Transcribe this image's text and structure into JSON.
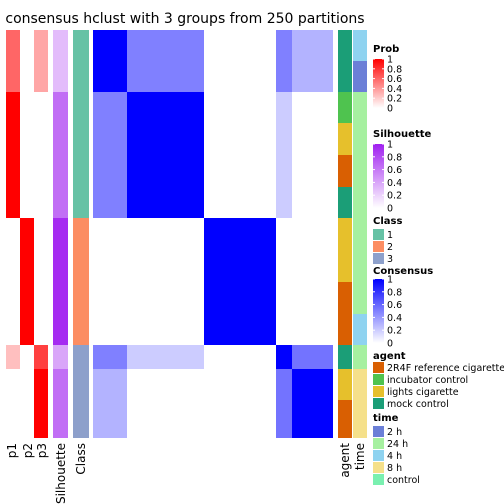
{
  "chart_data": {
    "type": "heatmap",
    "title": "consensus hclust with 3 groups from 250 partitions",
    "row_groups": [
      {
        "group": 1,
        "rows": 6
      },
      {
        "group": 2,
        "rows": 4
      },
      {
        "group": 3,
        "rows": 3
      }
    ],
    "row_blocks_px_note": "",
    "rows": [
      {
        "p1": 0.6,
        "p2": 0,
        "p3": 0.35,
        "silhouette": 0.3,
        "class": 1,
        "agent": "mock control",
        "time": "4 h"
      },
      {
        "p1": 0.6,
        "p2": 0,
        "p3": 0.35,
        "silhouette": 0.3,
        "class": 1,
        "agent": "mock control",
        "time": "2 h"
      },
      {
        "p1": 1.0,
        "p2": 0,
        "p3": 0,
        "silhouette": 0.65,
        "class": 1,
        "agent": "incubator control",
        "time": "24 h"
      },
      {
        "p1": 1.0,
        "p2": 0,
        "p3": 0,
        "silhouette": 0.65,
        "class": 1,
        "agent": "lights cigarette",
        "time": "24 h"
      },
      {
        "p1": 1.0,
        "p2": 0,
        "p3": 0,
        "silhouette": 0.65,
        "class": 1,
        "agent": "2R4F reference cigarette",
        "time": "24 h"
      },
      {
        "p1": 1.0,
        "p2": 0,
        "p3": 0,
        "silhouette": 0.65,
        "class": 1,
        "agent": "mock control",
        "time": "24 h"
      },
      {
        "p1": 0,
        "p2": 1.0,
        "p3": 0,
        "silhouette": 0.95,
        "class": 2,
        "agent": "lights cigarette",
        "time": "24 h"
      },
      {
        "p1": 0,
        "p2": 1.0,
        "p3": 0,
        "silhouette": 0.95,
        "class": 2,
        "agent": "lights cigarette",
        "time": "24 h"
      },
      {
        "p1": 0,
        "p2": 1.0,
        "p3": 0,
        "silhouette": 0.95,
        "class": 2,
        "agent": "2R4F reference cigarette",
        "time": "24 h"
      },
      {
        "p1": 0,
        "p2": 1.0,
        "p3": 0,
        "silhouette": 0.95,
        "class": 2,
        "agent": "2R4F reference cigarette",
        "time": "4 h"
      },
      {
        "p1": 0.25,
        "p2": 0,
        "p3": 0.75,
        "silhouette": 0.4,
        "class": 3,
        "agent": "mock control",
        "time": "24 h"
      },
      {
        "p1": 0,
        "p2": 0,
        "p3": 1.0,
        "silhouette": 0.65,
        "class": 3,
        "agent": "lights cigarette",
        "time": "8 h"
      },
      {
        "p1": 0,
        "p2": 0,
        "p3": 1.0,
        "silhouette": 0.65,
        "class": 3,
        "agent": "2R4F reference cigarette",
        "time": "8 h"
      }
    ],
    "consensus_blocks": [
      {
        "rows": [
          0,
          1
        ],
        "cols": [
          0,
          1
        ],
        "value": 1.0
      },
      {
        "rows": [
          0,
          1
        ],
        "cols": [
          2,
          5
        ],
        "value": 0.5
      },
      {
        "rows": [
          0,
          1
        ],
        "cols": [
          6,
          9
        ],
        "value": 0
      },
      {
        "rows": [
          0,
          1
        ],
        "cols": [
          10,
          10
        ],
        "value": 0.5
      },
      {
        "rows": [
          0,
          1
        ],
        "cols": [
          11,
          12
        ],
        "value": 0.3
      },
      {
        "rows": [
          2,
          5
        ],
        "cols": [
          0,
          1
        ],
        "value": 0.5
      },
      {
        "rows": [
          2,
          5
        ],
        "cols": [
          2,
          5
        ],
        "value": 1.0
      },
      {
        "rows": [
          2,
          5
        ],
        "cols": [
          6,
          9
        ],
        "value": 0
      },
      {
        "rows": [
          2,
          5
        ],
        "cols": [
          10,
          10
        ],
        "value": 0.2
      },
      {
        "rows": [
          2,
          5
        ],
        "cols": [
          11,
          12
        ],
        "value": 0
      },
      {
        "rows": [
          6,
          9
        ],
        "cols": [
          0,
          5
        ],
        "value": 0
      },
      {
        "rows": [
          6,
          9
        ],
        "cols": [
          6,
          9
        ],
        "value": 1.0
      },
      {
        "rows": [
          6,
          9
        ],
        "cols": [
          10,
          12
        ],
        "value": 0
      },
      {
        "rows": [
          10,
          10
        ],
        "cols": [
          0,
          1
        ],
        "value": 0.5
      },
      {
        "rows": [
          10,
          10
        ],
        "cols": [
          2,
          5
        ],
        "value": 0.2
      },
      {
        "rows": [
          10,
          10
        ],
        "cols": [
          6,
          9
        ],
        "value": 0
      },
      {
        "rows": [
          10,
          10
        ],
        "cols": [
          10,
          10
        ],
        "value": 1.0
      },
      {
        "rows": [
          10,
          10
        ],
        "cols": [
          11,
          12
        ],
        "value": 0.55
      },
      {
        "rows": [
          11,
          12
        ],
        "cols": [
          0,
          1
        ],
        "value": 0.3
      },
      {
        "rows": [
          11,
          12
        ],
        "cols": [
          2,
          5
        ],
        "value": 0
      },
      {
        "rows": [
          11,
          12
        ],
        "cols": [
          6,
          9
        ],
        "value": 0
      },
      {
        "rows": [
          11,
          12
        ],
        "cols": [
          10,
          10
        ],
        "value": 0.55
      },
      {
        "rows": [
          11,
          12
        ],
        "cols": [
          11,
          12
        ],
        "value": 1.0
      }
    ],
    "column_labels": [
      "p1",
      "p2",
      "p3",
      "Silhouette",
      "Class",
      "agent",
      "time"
    ],
    "legends": {
      "prob": {
        "title": "Prob",
        "ticks": [
          "1",
          "0.8",
          "0.6",
          "0.4",
          "0.2",
          "0"
        ],
        "color_low": "#ffffff",
        "color_high": "#ff0000"
      },
      "silhouette": {
        "title": "Silhouette",
        "ticks": [
          "1",
          "0.8",
          "0.6",
          "0.4",
          "0.2",
          "0"
        ],
        "color_low": "#ffffff",
        "color_high": "#a020f0"
      },
      "class": {
        "title": "Class",
        "items": [
          {
            "label": "1",
            "color": "#66c2a5"
          },
          {
            "label": "2",
            "color": "#fc8d62"
          },
          {
            "label": "3",
            "color": "#8da0cb"
          }
        ]
      },
      "consensus": {
        "title": "Consensus",
        "ticks": [
          "1",
          "0.8",
          "0.6",
          "0.4",
          "0.2",
          "0"
        ],
        "color_low": "#ffffff",
        "color_high": "#0000ff"
      },
      "agent": {
        "title": "agent",
        "items": [
          {
            "label": "2R4F reference cigarette",
            "color": "#d95f02"
          },
          {
            "label": "incubator control",
            "color": "#4fc34f"
          },
          {
            "label": "lights cigarette",
            "color": "#e6c02c"
          },
          {
            "label": "mock control",
            "color": "#1b9e77"
          }
        ]
      },
      "time": {
        "title": "time",
        "items": [
          {
            "label": "2 h",
            "color": "#6b7fd7"
          },
          {
            "label": "24 h",
            "color": "#a6f0a0"
          },
          {
            "label": "4 h",
            "color": "#8fd3f0"
          },
          {
            "label": "8 h",
            "color": "#f5e08a"
          },
          {
            "label": "control",
            "color": "#7af0b0"
          }
        ]
      }
    }
  }
}
